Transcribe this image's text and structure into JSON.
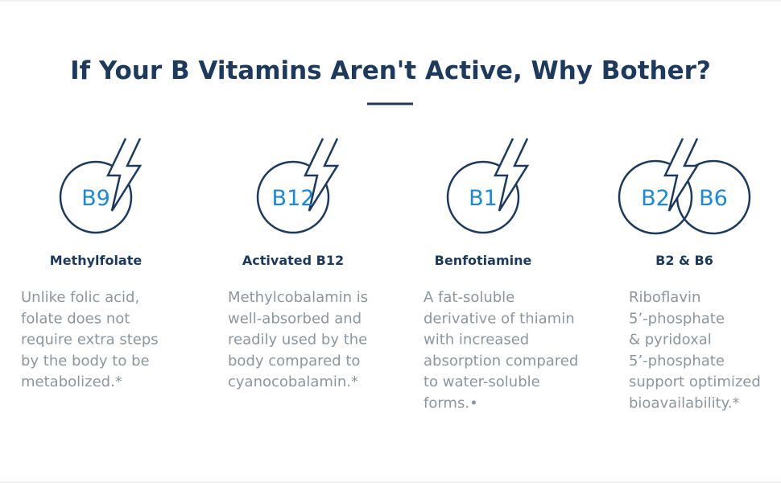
{
  "title": "If Your B Vitamins Aren't Active, Why Bother?",
  "items": [
    {
      "icon_labels": [
        "B9"
      ],
      "name": "Methylfolate",
      "description": [
        "Unlike folic acid,",
        "folate does not",
        "require extra steps",
        "by the body to be",
        "metabolized.*"
      ]
    },
    {
      "icon_labels": [
        "B12"
      ],
      "name": "Activated B12",
      "description": [
        "Methylcobalamin is",
        "well-absorbed and",
        "readily used by the",
        "body compared to",
        "cyanocobalamin.*"
      ]
    },
    {
      "icon_labels": [
        "B1"
      ],
      "name": "Benfotiamine",
      "description": [
        "A fat-soluble",
        "derivative of thiamin",
        "with increased",
        "absorption compared",
        "to water-soluble",
        "forms.•"
      ]
    },
    {
      "icon_labels": [
        "B2",
        "B6"
      ],
      "name": "B2 & B6",
      "description": [
        "Riboflavin",
        "5’-phosphate",
        "& pyridoxal",
        "5’-phosphate",
        "support optimized",
        "bioavailability.*"
      ]
    }
  ]
}
